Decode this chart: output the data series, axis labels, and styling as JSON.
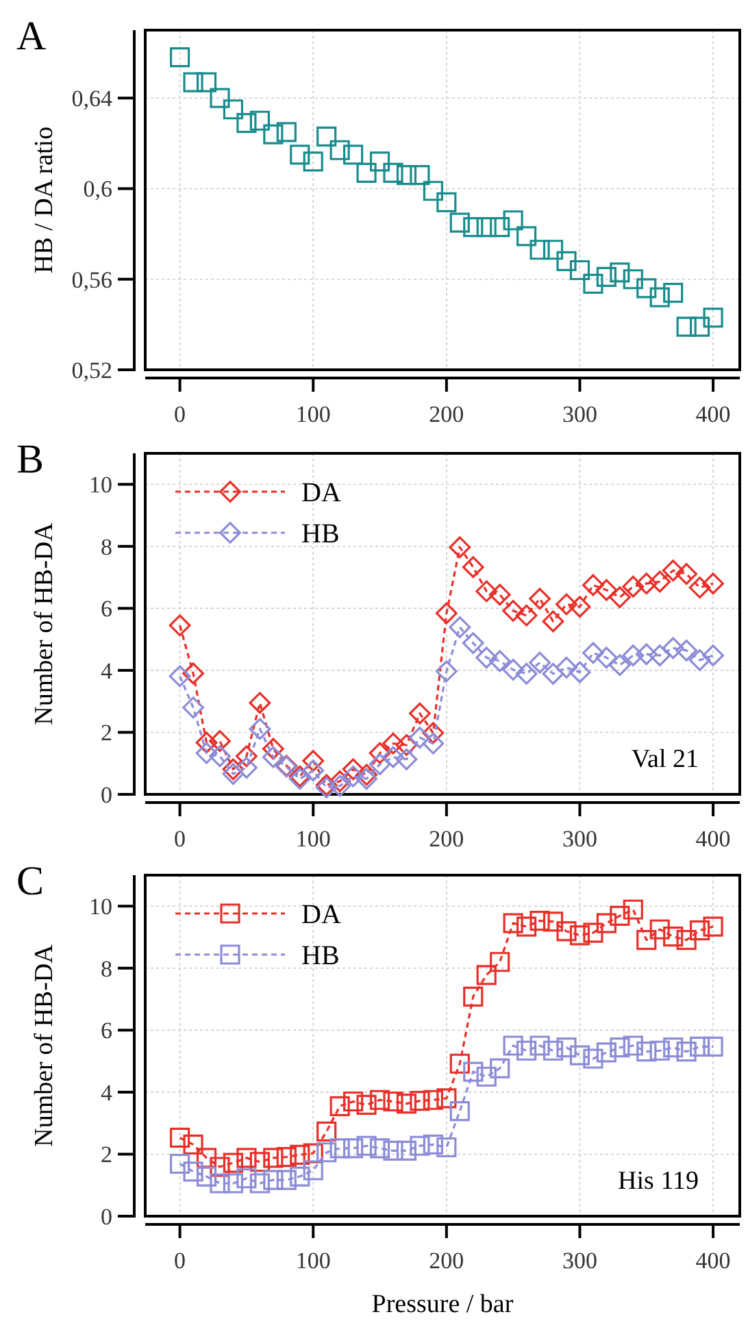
{
  "chart_data": [
    {
      "type": "scatter",
      "title": "A",
      "ylabel": "HB / DA ratio",
      "x": [
        0,
        10,
        20,
        30,
        40,
        50,
        60,
        70,
        80,
        90,
        100,
        110,
        120,
        130,
        140,
        150,
        160,
        170,
        180,
        190,
        200,
        210,
        220,
        230,
        240,
        250,
        260,
        270,
        280,
        290,
        300,
        310,
        320,
        330,
        340,
        350,
        360,
        370,
        380,
        390,
        400
      ],
      "series": [
        {
          "color": "#1a8c8c",
          "values": [
            0.658,
            0.647,
            0.647,
            0.64,
            0.635,
            0.629,
            0.63,
            0.624,
            0.625,
            0.615,
            0.612,
            0.623,
            0.617,
            0.615,
            0.607,
            0.612,
            0.607,
            0.606,
            0.606,
            0.599,
            0.594,
            0.585,
            0.583,
            0.583,
            0.583,
            0.586,
            0.579,
            0.573,
            0.573,
            0.568,
            0.564,
            0.558,
            0.561,
            0.563,
            0.56,
            0.556,
            0.552,
            0.554,
            0.539,
            0.539,
            0.543
          ]
        }
      ],
      "marker": "square",
      "grid": true,
      "xlim": [
        -26,
        420
      ],
      "xticks": [
        0,
        100,
        200,
        300,
        400
      ],
      "ylim": [
        0.52,
        0.67
      ],
      "yticks": [
        {
          "value": 0.52,
          "label": "0,52"
        },
        {
          "value": 0.56,
          "label": "0,56"
        },
        {
          "value": 0.6,
          "label": "0,6"
        },
        {
          "value": 0.64,
          "label": "0,64"
        }
      ]
    },
    {
      "type": "line",
      "title": "B",
      "ylabel": "Number of HB-DA",
      "annotations": [
        "Val 21"
      ],
      "x": [
        0,
        10,
        20,
        30,
        40,
        50,
        60,
        70,
        80,
        90,
        100,
        110,
        120,
        130,
        140,
        150,
        160,
        170,
        180,
        190,
        200,
        210,
        220,
        230,
        240,
        250,
        260,
        270,
        280,
        290,
        300,
        310,
        320,
        330,
        340,
        350,
        360,
        370,
        380,
        390,
        400
      ],
      "series": [
        {
          "name": "DA",
          "color": "#e8302a",
          "values": [
            5.45,
            3.9,
            1.67,
            1.72,
            0.81,
            1.23,
            2.95,
            1.47,
            0.92,
            0.58,
            1.08,
            0.3,
            0.42,
            0.81,
            0.63,
            1.33,
            1.64,
            1.59,
            2.61,
            1.98,
            5.84,
            7.97,
            7.33,
            6.55,
            6.44,
            5.92,
            5.77,
            6.31,
            5.58,
            6.13,
            6.05,
            6.75,
            6.59,
            6.36,
            6.7,
            6.8,
            6.86,
            7.22,
            7.11,
            6.67,
            6.8
          ]
        },
        {
          "name": "HB",
          "color": "#8c8cd8",
          "values": [
            3.81,
            2.8,
            1.33,
            1.23,
            0.66,
            0.86,
            2.11,
            1.2,
            0.89,
            0.5,
            0.77,
            0.22,
            0.27,
            0.58,
            0.5,
            0.97,
            1.2,
            1.13,
            1.83,
            1.64,
            3.97,
            5.39,
            4.88,
            4.41,
            4.3,
            4.02,
            3.89,
            4.25,
            3.89,
            4.09,
            3.94,
            4.56,
            4.41,
            4.17,
            4.48,
            4.52,
            4.48,
            4.72,
            4.64,
            4.33,
            4.48
          ]
        }
      ],
      "marker": "diamond",
      "line_style": "dashed",
      "legend": "top left",
      "grid": true,
      "xlim": [
        -26,
        420
      ],
      "xticks": [
        0,
        100,
        200,
        300,
        400
      ],
      "ylim": [
        0,
        11
      ],
      "yticks": [
        0,
        2,
        4,
        6,
        8,
        10
      ]
    },
    {
      "type": "line",
      "title": "C",
      "xlabel": "Pressure / bar",
      "ylabel": "Number of HB-DA",
      "annotations": [
        "His 119"
      ],
      "x": [
        0,
        10,
        20,
        30,
        40,
        50,
        60,
        70,
        80,
        90,
        100,
        110,
        120,
        130,
        140,
        150,
        160,
        170,
        180,
        190,
        200,
        210,
        220,
        230,
        240,
        250,
        260,
        270,
        280,
        290,
        300,
        310,
        320,
        330,
        340,
        350,
        360,
        370,
        380,
        390,
        400
      ],
      "series": [
        {
          "name": "DA",
          "color": "#e8302a",
          "values": [
            2.53,
            2.31,
            1.88,
            1.59,
            1.72,
            1.88,
            1.75,
            1.88,
            1.91,
            1.98,
            2.03,
            2.73,
            3.55,
            3.7,
            3.59,
            3.75,
            3.7,
            3.63,
            3.72,
            3.75,
            3.8,
            4.92,
            7.08,
            7.78,
            8.2,
            9.45,
            9.34,
            9.53,
            9.5,
            9.19,
            9.06,
            9.14,
            9.45,
            9.69,
            9.89,
            8.91,
            9.25,
            9.02,
            8.91,
            9.22,
            9.34
          ]
        },
        {
          "name": "HB",
          "color": "#8c8cd8",
          "values": [
            1.69,
            1.44,
            1.28,
            1.06,
            1.06,
            1.22,
            1.06,
            1.17,
            1.17,
            1.28,
            1.48,
            2.06,
            2.19,
            2.19,
            2.27,
            2.19,
            2.11,
            2.11,
            2.27,
            2.31,
            2.22,
            3.39,
            4.66,
            4.5,
            4.77,
            5.5,
            5.34,
            5.5,
            5.34,
            5.44,
            5.19,
            5.08,
            5.28,
            5.44,
            5.5,
            5.31,
            5.34,
            5.44,
            5.31,
            5.47,
            5.47
          ]
        }
      ],
      "marker": "square",
      "line_style": "dashed",
      "legend": "top left",
      "grid": true,
      "xlim": [
        -26,
        420
      ],
      "xticks": [
        0,
        100,
        200,
        300,
        400
      ],
      "ylim": [
        0,
        11
      ],
      "yticks": [
        0,
        2,
        4,
        6,
        8,
        10
      ]
    }
  ]
}
